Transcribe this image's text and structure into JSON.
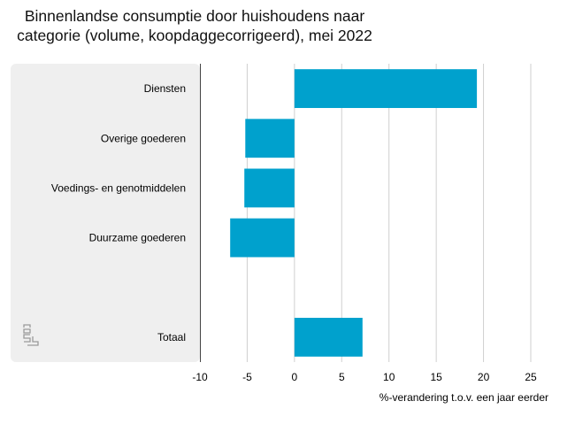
{
  "title_lines": [
    "Binnenlandse consumptie door huishoudens naar",
    "categorie (volume, koopdaggecorrigeerd), mei 2022"
  ],
  "logo_text": "cbs",
  "colors": {
    "bar": "#00a1cd",
    "panel": "#efefef",
    "grid": "#cfcfcf",
    "axis": "#444444"
  },
  "chart_data": {
    "type": "bar",
    "orientation": "horizontal",
    "categories": [
      "Diensten",
      "Overige goederen",
      "Voedings- en genotmiddelen",
      "Duurzame goederen",
      "",
      "Totaal"
    ],
    "values": [
      19.3,
      -5.2,
      -5.3,
      -6.8,
      null,
      7.2
    ],
    "title": "Binnenlandse consumptie door huishoudens naar categorie (volume, koopdaggecorrigeerd), mei 2022",
    "xlabel": "%-verandering t.o.v. een jaar eerder",
    "ylabel": "",
    "xlim": [
      -10,
      25
    ],
    "xticks": [
      -10,
      -5,
      0,
      5,
      10,
      15,
      20,
      25
    ],
    "xtick_labels": [
      "-10",
      "-5",
      "0",
      "5",
      "10",
      "15",
      "20",
      "25"
    ],
    "grid": true
  }
}
